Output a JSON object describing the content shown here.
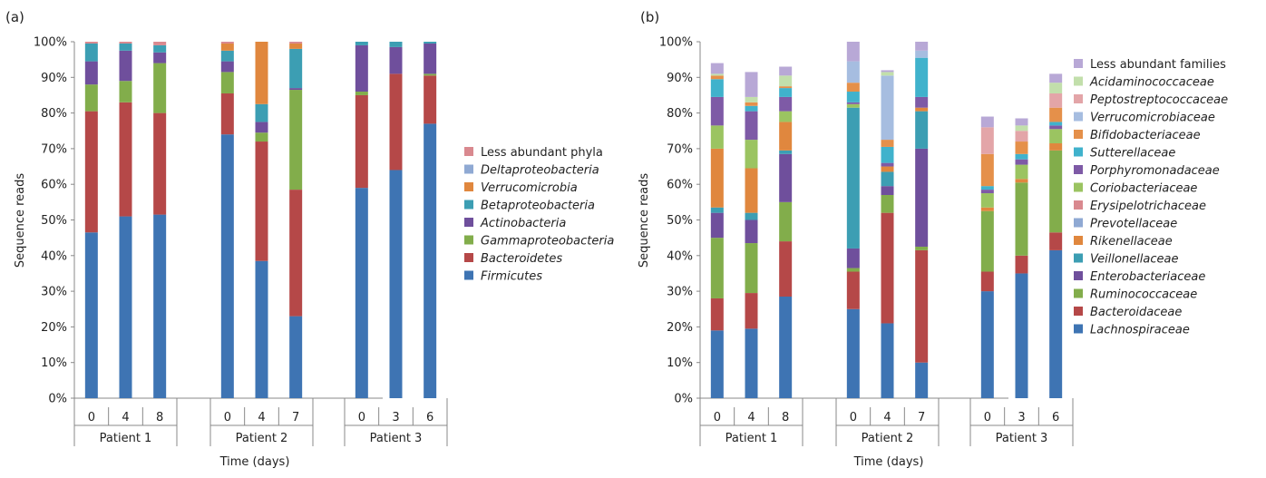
{
  "figure": {
    "panels": [
      "(a)",
      "(b)"
    ]
  },
  "chart_data": [
    {
      "type": "bar",
      "stacked": true,
      "panel_label": "(a)",
      "xlabel": "Time (days)",
      "ylabel": "Sequence reads",
      "ylim": [
        0,
        100
      ],
      "y_ticks": [
        "0%",
        "10%",
        "20%",
        "30%",
        "40%",
        "50%",
        "60%",
        "70%",
        "80%",
        "90%",
        "100%"
      ],
      "groups": [
        {
          "name": "Patient 1",
          "categories": [
            "0",
            "4",
            "8"
          ]
        },
        {
          "name": "Patient 2",
          "categories": [
            "0",
            "4",
            "7"
          ]
        },
        {
          "name": "Patient 3",
          "categories": [
            "0",
            "3",
            "6"
          ]
        }
      ],
      "legend_position": "right",
      "series": [
        {
          "name": "Firmicutes",
          "color": "#3e74b3",
          "values": [
            46.5,
            51,
            51.5,
            74,
            38.5,
            23,
            59,
            64,
            77
          ]
        },
        {
          "name": "Bacteroidetes",
          "color": "#b54848",
          "values": [
            34,
            32,
            28.5,
            11.5,
            33.5,
            35.5,
            26,
            27,
            13.5
          ]
        },
        {
          "name": "Gammaproteobacteria",
          "color": "#82ad4b",
          "values": [
            7.5,
            6,
            14,
            6,
            2.5,
            28,
            1,
            0,
            0.5
          ]
        },
        {
          "name": "Actinobacteria",
          "color": "#6f4f9c",
          "values": [
            6.5,
            8.5,
            3,
            3,
            3,
            0.5,
            13,
            7.5,
            8.5
          ]
        },
        {
          "name": "Betaproteobacteria",
          "color": "#3c9eb3",
          "values": [
            5,
            2,
            2,
            3,
            5,
            11,
            1,
            1.5,
            0.5
          ]
        },
        {
          "name": "Verrucomicrobia",
          "color": "#e0873e",
          "values": [
            0,
            0,
            0,
            2,
            17.5,
            1.5,
            0,
            0,
            0
          ]
        },
        {
          "name": "Deltaproteobacteria",
          "color": "#8fa9d3",
          "values": [
            0,
            0,
            0,
            0,
            0,
            0,
            0,
            0,
            0
          ]
        },
        {
          "name": "Less abundant phyla",
          "color": "#d9898f",
          "values": [
            0.5,
            0.5,
            1,
            0.5,
            0,
            0.5,
            0,
            0,
            0
          ]
        }
      ]
    },
    {
      "type": "bar",
      "stacked": true,
      "panel_label": "(b)",
      "xlabel": "Time (days)",
      "ylabel": "Sequence reads",
      "ylim": [
        0,
        100
      ],
      "y_ticks": [
        "0%",
        "10%",
        "20%",
        "30%",
        "40%",
        "50%",
        "60%",
        "70%",
        "80%",
        "90%",
        "100%"
      ],
      "groups": [
        {
          "name": "Patient 1",
          "categories": [
            "0",
            "4",
            "8"
          ]
        },
        {
          "name": "Patient 2",
          "categories": [
            "0",
            "4",
            "7"
          ]
        },
        {
          "name": "Patient 3",
          "categories": [
            "0",
            "3",
            "6"
          ]
        }
      ],
      "legend_position": "right",
      "series": [
        {
          "name": "Lachnospiraceae",
          "color": "#3e74b3",
          "values": [
            19,
            19.5,
            28.5,
            25,
            21,
            10,
            30,
            35,
            41.5
          ]
        },
        {
          "name": "Bacteroidaceae",
          "color": "#b54848",
          "values": [
            9,
            10,
            15.5,
            10.5,
            31,
            31.5,
            5.5,
            5,
            5
          ]
        },
        {
          "name": "Ruminococcaceae",
          "color": "#82ad4b",
          "values": [
            17,
            14,
            11,
            1,
            5,
            1,
            17,
            20.5,
            23
          ]
        },
        {
          "name": "Enterobacteriaceae",
          "color": "#6f4f9c",
          "values": [
            7,
            6.5,
            13.5,
            5.5,
            2.5,
            27.5,
            0,
            0,
            0
          ]
        },
        {
          "name": "Veillonellaceae",
          "color": "#3c9eb3",
          "values": [
            1.5,
            2,
            1,
            39.5,
            4,
            10.5,
            0,
            0,
            0
          ]
        },
        {
          "name": "Rikenellaceae",
          "color": "#e0873e",
          "values": [
            16.5,
            12.5,
            8,
            0,
            1.5,
            1,
            1,
            1,
            2
          ]
        },
        {
          "name": "Prevotellaceae",
          "color": "#8fa9d3",
          "values": [
            0,
            0,
            0,
            0,
            0,
            0,
            0,
            0,
            0
          ]
        },
        {
          "name": "Erysipelotrichaceae",
          "color": "#d9898f",
          "values": [
            0,
            0,
            0,
            0,
            0,
            0,
            0,
            0,
            0
          ]
        },
        {
          "name": "Coriobacteriaceae",
          "color": "#9bc461",
          "values": [
            6.5,
            8,
            3,
            1,
            0,
            0,
            4,
            4,
            4
          ]
        },
        {
          "name": "Porphyromonadaceae",
          "color": "#7e5aa6",
          "values": [
            8,
            8,
            4,
            0.5,
            1,
            3,
            1,
            1.5,
            1
          ]
        },
        {
          "name": "Sutterellaceae",
          "color": "#40b2cc",
          "values": [
            5,
            1.5,
            2.5,
            3,
            4.5,
            11,
            1,
            1.5,
            1
          ]
        },
        {
          "name": "Bifidobacteriaceae",
          "color": "#e5904a",
          "values": [
            1,
            1,
            0.5,
            2.5,
            2,
            0,
            9,
            3.5,
            4
          ]
        },
        {
          "name": "Verrucomicrobiaceae",
          "color": "#a6bde0",
          "values": [
            0,
            0,
            0,
            6,
            18,
            2,
            0,
            0,
            0
          ]
        },
        {
          "name": "Peptostreptococcaceae",
          "color": "#e3a5a8",
          "values": [
            0,
            0,
            0,
            0,
            0,
            0,
            7.5,
            3,
            4
          ]
        },
        {
          "name": "Acidaminococcaceae",
          "color": "#c2dfab",
          "values": [
            0.5,
            1.5,
            3,
            0,
            1,
            0,
            0,
            1.5,
            3
          ]
        },
        {
          "name": "Less abundant families",
          "color": "#b8a8d6",
          "values": [
            3,
            7,
            2.5,
            5.5,
            0.5,
            2.5,
            3,
            2,
            2.5
          ]
        }
      ]
    }
  ]
}
